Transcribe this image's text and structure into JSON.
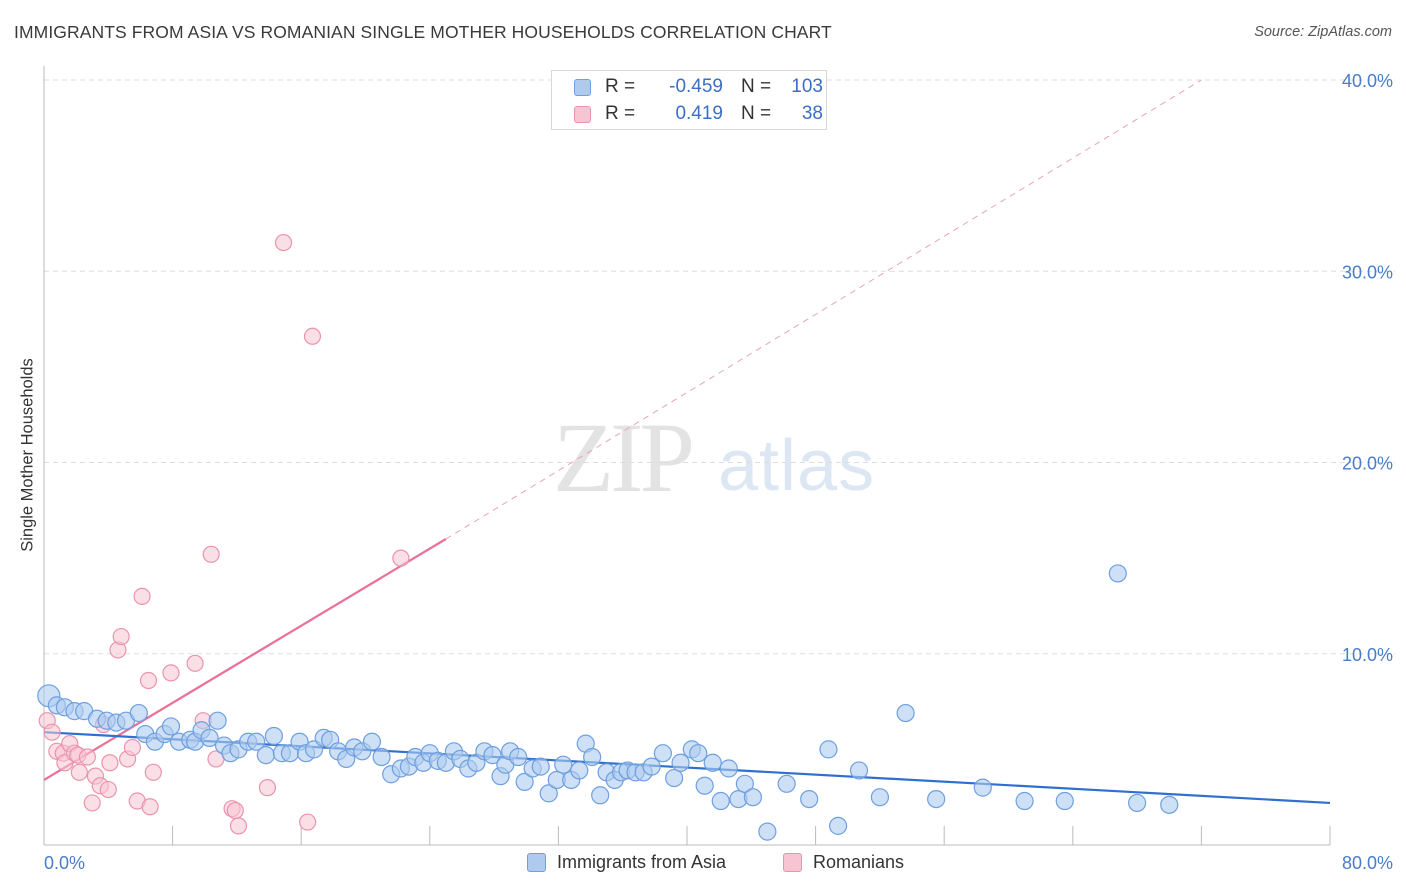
{
  "header": {
    "title": "IMMIGRANTS FROM ASIA VS ROMANIAN SINGLE MOTHER HOUSEHOLDS CORRELATION CHART",
    "source": "Source: ZipAtlas.com"
  },
  "watermark": {
    "zip": "ZIP",
    "atlas": "atlas"
  },
  "legend_top": {
    "rows": [
      {
        "r_label": "R =",
        "r_value": "-0.459",
        "n_label": "N =",
        "n_value": "103"
      },
      {
        "r_label": "R =",
        "r_value": "0.419",
        "n_label": "N =",
        "n_value": "38"
      }
    ]
  },
  "legend_bottom": {
    "items": [
      {
        "label": "Immigrants from Asia"
      },
      {
        "label": "Romanians"
      }
    ]
  },
  "colors": {
    "blue_fill": "#aecbef",
    "blue_stroke": "#6e9fe0",
    "blue_line": "#2f6fce",
    "pink_fill": "#f8c4d3",
    "pink_stroke": "#eb93ad",
    "pink_line": "#e8709a",
    "grid": "#dddddd",
    "tick_text": "#4a7cc9"
  },
  "chart_data": {
    "type": "scatter",
    "title": "IMMIGRANTS FROM ASIA VS ROMANIAN SINGLE MOTHER HOUSEHOLDS CORRELATION CHART",
    "xlabel": "",
    "ylabel": "Single Mother Households",
    "xlim": [
      0,
      80
    ],
    "ylim": [
      0,
      40
    ],
    "x_tick_labels": [
      "0.0%",
      "80.0%"
    ],
    "y_ticks": [
      10,
      20,
      30,
      40
    ],
    "y_tick_labels": [
      "10.0%",
      "20.0%",
      "30.0%",
      "40.0%"
    ],
    "grid": true,
    "legend_position": "top-center",
    "series": [
      {
        "name": "Immigrants from Asia",
        "color": "#aecbef",
        "trend": {
          "x": [
            0,
            80
          ],
          "y": [
            5.9,
            2.2
          ]
        },
        "points": [
          [
            0.3,
            7.8
          ],
          [
            0.8,
            7.3
          ],
          [
            1.3,
            7.2
          ],
          [
            1.9,
            7.0
          ],
          [
            2.5,
            7.0
          ],
          [
            3.3,
            6.6
          ],
          [
            3.9,
            6.5
          ],
          [
            4.5,
            6.4
          ],
          [
            5.1,
            6.5
          ],
          [
            5.9,
            6.9
          ],
          [
            6.3,
            5.8
          ],
          [
            6.9,
            5.4
          ],
          [
            7.5,
            5.8
          ],
          [
            7.9,
            6.2
          ],
          [
            8.4,
            5.4
          ],
          [
            9.1,
            5.5
          ],
          [
            9.4,
            5.4
          ],
          [
            9.8,
            6.0
          ],
          [
            10.3,
            5.6
          ],
          [
            10.8,
            6.5
          ],
          [
            11.2,
            5.2
          ],
          [
            11.6,
            4.8
          ],
          [
            12.1,
            5.0
          ],
          [
            12.7,
            5.4
          ],
          [
            13.2,
            5.4
          ],
          [
            13.8,
            4.7
          ],
          [
            14.3,
            5.7
          ],
          [
            14.8,
            4.8
          ],
          [
            15.3,
            4.8
          ],
          [
            15.9,
            5.4
          ],
          [
            16.3,
            4.8
          ],
          [
            16.8,
            5.0
          ],
          [
            17.4,
            5.6
          ],
          [
            17.8,
            5.5
          ],
          [
            18.3,
            4.9
          ],
          [
            18.8,
            4.5
          ],
          [
            19.3,
            5.1
          ],
          [
            19.8,
            4.9
          ],
          [
            20.4,
            5.4
          ],
          [
            21.0,
            4.6
          ],
          [
            21.6,
            3.7
          ],
          [
            22.2,
            4.0
          ],
          [
            22.7,
            4.1
          ],
          [
            23.1,
            4.6
          ],
          [
            23.6,
            4.3
          ],
          [
            24.0,
            4.8
          ],
          [
            24.5,
            4.4
          ],
          [
            25.0,
            4.3
          ],
          [
            25.5,
            4.9
          ],
          [
            25.9,
            4.5
          ],
          [
            26.4,
            4.0
          ],
          [
            26.9,
            4.3
          ],
          [
            27.4,
            4.9
          ],
          [
            27.9,
            4.7
          ],
          [
            28.4,
            3.6
          ],
          [
            28.7,
            4.2
          ],
          [
            29.0,
            4.9
          ],
          [
            29.5,
            4.6
          ],
          [
            29.9,
            3.3
          ],
          [
            30.4,
            4.0
          ],
          [
            30.9,
            4.1
          ],
          [
            31.4,
            2.7
          ],
          [
            31.9,
            3.4
          ],
          [
            32.3,
            4.2
          ],
          [
            32.8,
            3.4
          ],
          [
            33.3,
            3.9
          ],
          [
            33.7,
            5.3
          ],
          [
            34.1,
            4.6
          ],
          [
            34.6,
            2.6
          ],
          [
            35.0,
            3.8
          ],
          [
            35.5,
            3.4
          ],
          [
            35.9,
            3.8
          ],
          [
            36.3,
            3.9
          ],
          [
            36.8,
            3.8
          ],
          [
            37.3,
            3.8
          ],
          [
            37.8,
            4.1
          ],
          [
            38.5,
            4.8
          ],
          [
            39.2,
            3.5
          ],
          [
            39.6,
            4.3
          ],
          [
            40.3,
            5.0
          ],
          [
            40.7,
            4.8
          ],
          [
            41.1,
            3.1
          ],
          [
            41.6,
            4.3
          ],
          [
            42.1,
            2.3
          ],
          [
            42.6,
            4.0
          ],
          [
            43.2,
            2.4
          ],
          [
            43.6,
            3.2
          ],
          [
            44.1,
            2.5
          ],
          [
            45.0,
            0.7
          ],
          [
            46.2,
            3.2
          ],
          [
            47.6,
            2.4
          ],
          [
            48.8,
            5.0
          ],
          [
            49.4,
            1.0
          ],
          [
            50.7,
            3.9
          ],
          [
            52.0,
            2.5
          ],
          [
            53.6,
            6.9
          ],
          [
            55.5,
            2.4
          ],
          [
            58.4,
            3.0
          ],
          [
            61.0,
            2.3
          ],
          [
            63.5,
            2.3
          ],
          [
            66.8,
            14.2
          ],
          [
            68.0,
            2.2
          ],
          [
            70.0,
            2.1
          ]
        ]
      },
      {
        "name": "Romanians",
        "color": "#f8c4d3",
        "trend": {
          "x": [
            0,
            25
          ],
          "y": [
            3.4,
            16.0
          ]
        },
        "trend_extension": {
          "x": [
            25,
            72
          ],
          "y": [
            16.0,
            40.0
          ]
        },
        "points": [
          [
            0.2,
            6.5
          ],
          [
            0.5,
            5.9
          ],
          [
            0.8,
            4.9
          ],
          [
            1.2,
            4.8
          ],
          [
            1.3,
            4.3
          ],
          [
            1.6,
            5.3
          ],
          [
            1.9,
            4.8
          ],
          [
            2.1,
            4.7
          ],
          [
            2.2,
            3.8
          ],
          [
            2.7,
            4.6
          ],
          [
            3.0,
            2.2
          ],
          [
            3.2,
            3.6
          ],
          [
            3.5,
            3.1
          ],
          [
            3.7,
            6.3
          ],
          [
            4.0,
            2.9
          ],
          [
            4.1,
            4.3
          ],
          [
            4.6,
            10.2
          ],
          [
            4.8,
            10.9
          ],
          [
            5.2,
            4.5
          ],
          [
            5.5,
            5.1
          ],
          [
            5.8,
            2.3
          ],
          [
            6.1,
            13.0
          ],
          [
            6.5,
            8.6
          ],
          [
            6.6,
            2.0
          ],
          [
            6.8,
            3.8
          ],
          [
            7.9,
            9.0
          ],
          [
            9.4,
            9.5
          ],
          [
            9.9,
            6.5
          ],
          [
            10.4,
            15.2
          ],
          [
            10.7,
            4.5
          ],
          [
            11.7,
            1.9
          ],
          [
            11.9,
            1.8
          ],
          [
            12.1,
            1.0
          ],
          [
            13.9,
            3.0
          ],
          [
            14.9,
            31.5
          ],
          [
            16.4,
            1.2
          ],
          [
            16.7,
            26.6
          ],
          [
            22.2,
            15.0
          ]
        ]
      }
    ]
  }
}
